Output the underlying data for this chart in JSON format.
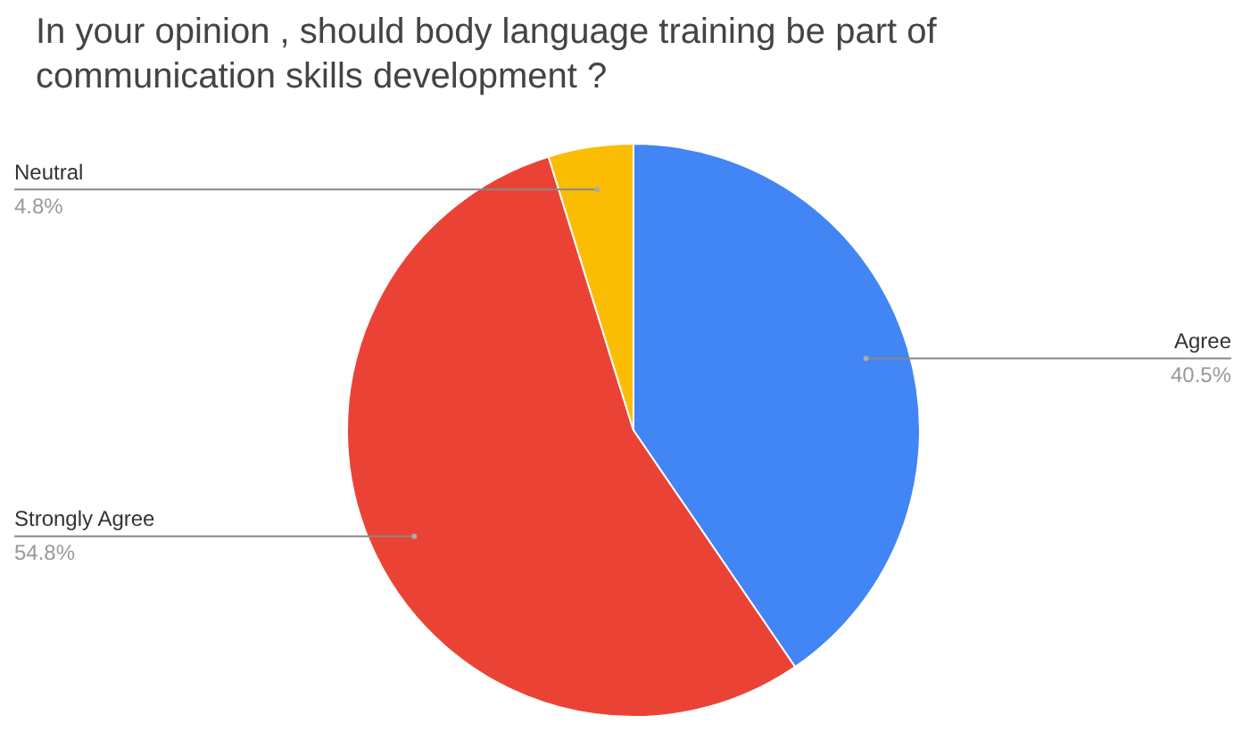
{
  "chart_data": {
    "type": "pie",
    "title": "In your opinion , should body language training be part of communication skills development ?",
    "categories": [
      "Agree",
      "Strongly Agree",
      "Neutral"
    ],
    "values": [
      40.5,
      54.8,
      4.8
    ],
    "value_labels": [
      "40.5%",
      "54.8%",
      "4.8%"
    ],
    "colors": [
      "#4285f4",
      "#ea4335",
      "#fbbc04"
    ],
    "legend": false
  }
}
